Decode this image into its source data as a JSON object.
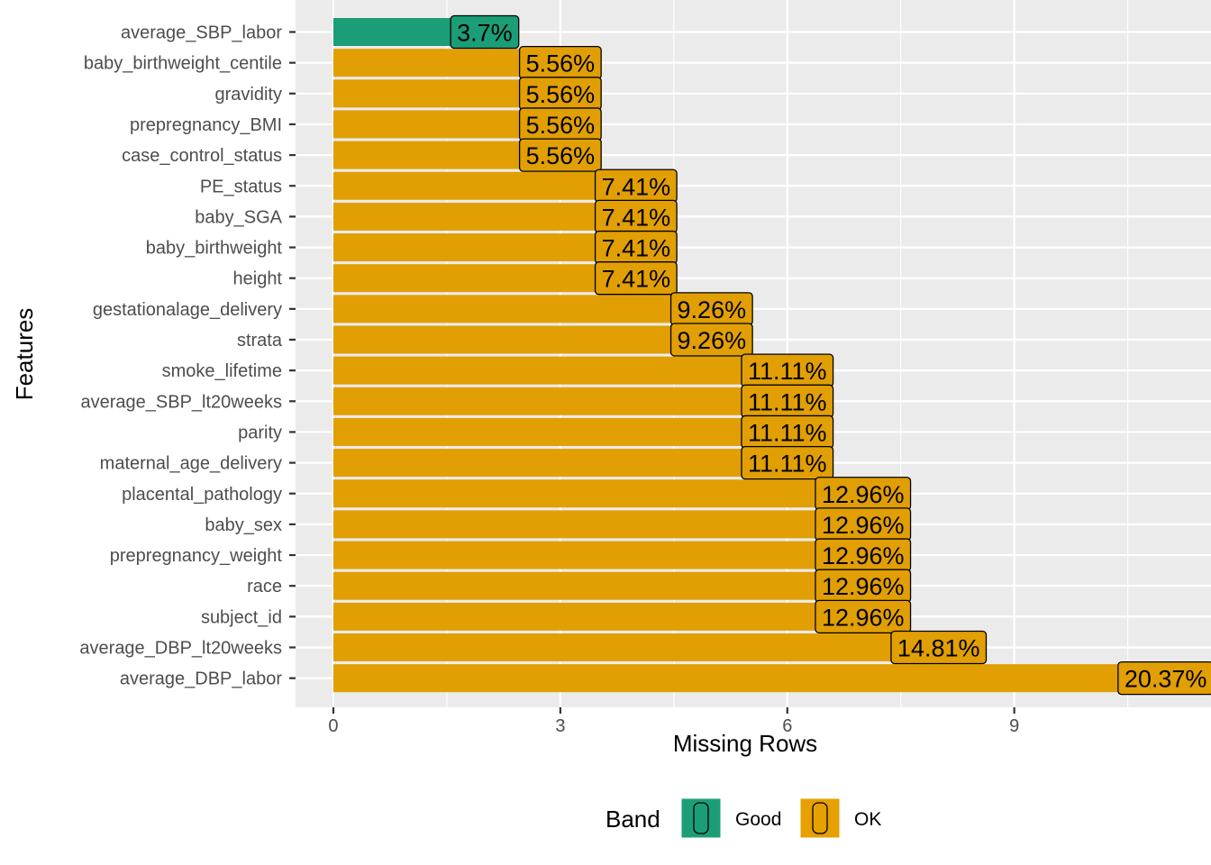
{
  "chart_data": {
    "type": "bar",
    "orientation": "horizontal",
    "xlabel": "Missing Rows",
    "ylabel": "Features",
    "xlim": [
      -0.5,
      11.6
    ],
    "xticks": [
      0,
      3,
      6,
      9
    ],
    "grid": true,
    "legend_position": "bottom",
    "categories": [
      "average_SBP_labor",
      "baby_birthweight_centile",
      "gravidity",
      "prepregnancy_BMI",
      "case_control_status",
      "PE_status",
      "baby_SGA",
      "baby_birthweight",
      "height",
      "gestationalage_delivery",
      "strata",
      "smoke_lifetime",
      "average_SBP_lt20weeks",
      "parity",
      "maternal_age_delivery",
      "placental_pathology",
      "baby_sex",
      "prepregnancy_weight",
      "race",
      "subject_id",
      "average_DBP_lt20weeks",
      "average_DBP_labor"
    ],
    "values": [
      2,
      3,
      3,
      3,
      3,
      4,
      4,
      4,
      4,
      5,
      5,
      6,
      6,
      6,
      6,
      7,
      7,
      7,
      7,
      7,
      8,
      11
    ],
    "labels": [
      "3.7%",
      "5.56%",
      "5.56%",
      "5.56%",
      "5.56%",
      "7.41%",
      "7.41%",
      "7.41%",
      "7.41%",
      "9.26%",
      "9.26%",
      "11.11%",
      "11.11%",
      "11.11%",
      "11.11%",
      "12.96%",
      "12.96%",
      "12.96%",
      "12.96%",
      "12.96%",
      "14.81%",
      "20.37%"
    ],
    "bands": [
      "Good",
      "OK",
      "OK",
      "OK",
      "OK",
      "OK",
      "OK",
      "OK",
      "OK",
      "OK",
      "OK",
      "OK",
      "OK",
      "OK",
      "OK",
      "OK",
      "OK",
      "OK",
      "OK",
      "OK",
      "OK",
      "OK"
    ],
    "legend": {
      "title": "Band",
      "items": [
        {
          "name": "Good",
          "color": "#1b9e77"
        },
        {
          "name": "OK",
          "color": "#e6a000"
        }
      ]
    },
    "colors": {
      "panel": "#ebebeb",
      "grid_major": "#ffffff",
      "Good": "#1b9e77",
      "OK": "#e19f04"
    }
  }
}
